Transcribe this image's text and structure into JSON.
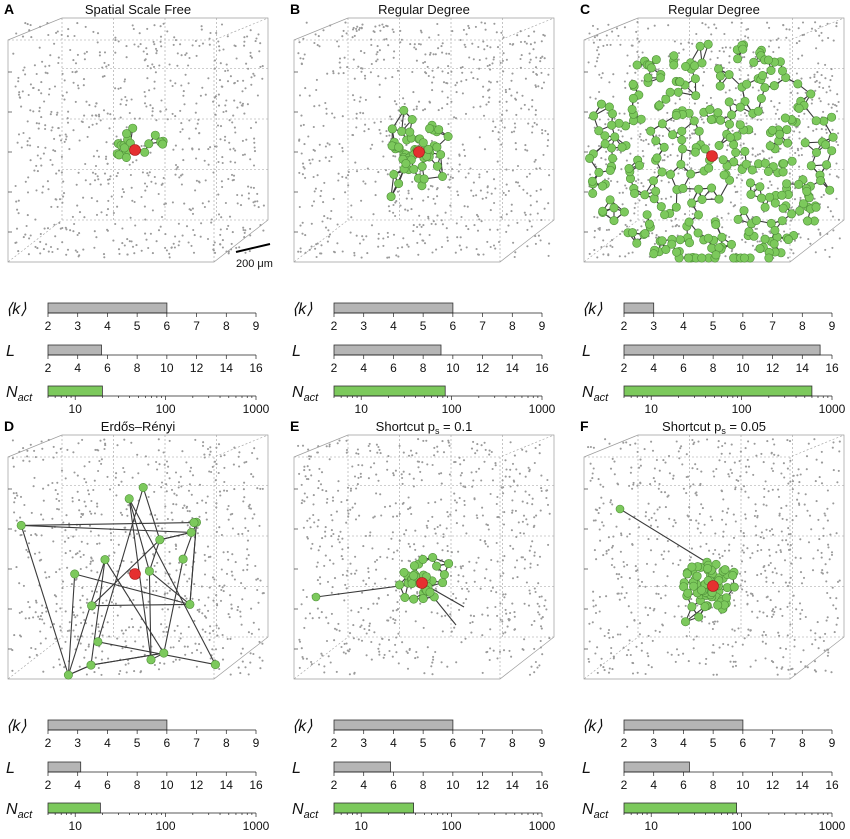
{
  "figure": {
    "scale_bar_label": "200 μm",
    "colors": {
      "background_dot": "#9a9a9a",
      "node": "#7cc95c",
      "node_stroke": "#4f8f39",
      "seed": "#e53030",
      "edge": "#3a3a3a",
      "bar_gray": "#b5b5b5",
      "bar_green": "#7cc95c",
      "axis": "#222222",
      "cube_line": "#9d9d9d"
    }
  },
  "chart_data": [
    {
      "type": "scatter",
      "panel_letter": "A",
      "title": "Spatial Scale Free",
      "metrics": {
        "k": {
          "label": "⟨k⟩",
          "range": [
            2,
            9
          ],
          "ticks": [
            "2",
            "3",
            "4",
            "5",
            "6",
            "7",
            "8",
            "9"
          ],
          "value": 6
        },
        "L": {
          "label": "L",
          "range": [
            2,
            16
          ],
          "ticks": [
            "2",
            "4",
            "6",
            "8",
            "10",
            "12",
            "14",
            "16"
          ],
          "value": 5.6
        },
        "N_act": {
          "label": "N",
          "subscript": "act",
          "scale": "log",
          "range": [
            5,
            1000
          ],
          "ticks": [
            "10",
            "100",
            "1000"
          ],
          "value": 20
        }
      }
    },
    {
      "type": "scatter",
      "panel_letter": "B",
      "title": "Regular Degree",
      "metrics": {
        "k": {
          "label": "⟨k⟩",
          "range": [
            2,
            9
          ],
          "ticks": [
            "2",
            "3",
            "4",
            "5",
            "6",
            "7",
            "8",
            "9"
          ],
          "value": 6
        },
        "L": {
          "label": "L",
          "range": [
            2,
            16
          ],
          "ticks": [
            "2",
            "4",
            "6",
            "8",
            "10",
            "12",
            "14",
            "16"
          ],
          "value": 9.2
        },
        "N_act": {
          "label": "N",
          "subscript": "act",
          "scale": "log",
          "range": [
            5,
            1000
          ],
          "ticks": [
            "10",
            "100",
            "1000"
          ],
          "value": 85
        }
      }
    },
    {
      "type": "scatter",
      "panel_letter": "C",
      "title": "Regular Degree",
      "metrics": {
        "k": {
          "label": "⟨k⟩",
          "range": [
            2,
            9
          ],
          "ticks": [
            "2",
            "3",
            "4",
            "5",
            "6",
            "7",
            "8",
            "9"
          ],
          "value": 3
        },
        "L": {
          "label": "L",
          "range": [
            2,
            16
          ],
          "ticks": [
            "2",
            "4",
            "6",
            "8",
            "10",
            "12",
            "14",
            "16"
          ],
          "value": 15.2
        },
        "N_act": {
          "label": "N",
          "subscript": "act",
          "scale": "log",
          "range": [
            5,
            1000
          ],
          "ticks": [
            "10",
            "100",
            "1000"
          ],
          "value": 600
        }
      }
    },
    {
      "type": "scatter",
      "panel_letter": "D",
      "title": "Erdős–Rényi",
      "metrics": {
        "k": {
          "label": "⟨k⟩",
          "range": [
            2,
            9
          ],
          "ticks": [
            "2",
            "3",
            "4",
            "5",
            "6",
            "7",
            "8",
            "9"
          ],
          "value": 6
        },
        "L": {
          "label": "L",
          "range": [
            2,
            16
          ],
          "ticks": [
            "2",
            "4",
            "6",
            "8",
            "10",
            "12",
            "14",
            "16"
          ],
          "value": 4.2
        },
        "N_act": {
          "label": "N",
          "subscript": "act",
          "scale": "log",
          "range": [
            5,
            1000
          ],
          "ticks": [
            "10",
            "100",
            "1000"
          ],
          "value": 19
        }
      }
    },
    {
      "type": "scatter",
      "panel_letter": "E",
      "title": "Shortcut p",
      "title_subscript": "s",
      "title_suffix": " = 0.1",
      "metrics": {
        "k": {
          "label": "⟨k⟩",
          "range": [
            2,
            9
          ],
          "ticks": [
            "2",
            "3",
            "4",
            "5",
            "6",
            "7",
            "8",
            "9"
          ],
          "value": 6
        },
        "L": {
          "label": "L",
          "range": [
            2,
            16
          ],
          "ticks": [
            "2",
            "4",
            "6",
            "8",
            "10",
            "12",
            "14",
            "16"
          ],
          "value": 5.8
        },
        "N_act": {
          "label": "N",
          "subscript": "act",
          "scale": "log",
          "range": [
            5,
            1000
          ],
          "ticks": [
            "10",
            "100",
            "1000"
          ],
          "value": 38
        }
      }
    },
    {
      "type": "scatter",
      "panel_letter": "F",
      "title": "Shortcut p",
      "title_subscript": "s",
      "title_suffix": " = 0.05",
      "metrics": {
        "k": {
          "label": "⟨k⟩",
          "range": [
            2,
            9
          ],
          "ticks": [
            "2",
            "3",
            "4",
            "5",
            "6",
            "7",
            "8",
            "9"
          ],
          "value": 6
        },
        "L": {
          "label": "L",
          "range": [
            2,
            16
          ],
          "ticks": [
            "2",
            "4",
            "6",
            "8",
            "10",
            "12",
            "14",
            "16"
          ],
          "value": 6.4
        },
        "N_act": {
          "label": "N",
          "subscript": "act",
          "scale": "log",
          "range": [
            5,
            1000
          ],
          "ticks": [
            "10",
            "100",
            "1000"
          ],
          "value": 88
        }
      }
    }
  ]
}
